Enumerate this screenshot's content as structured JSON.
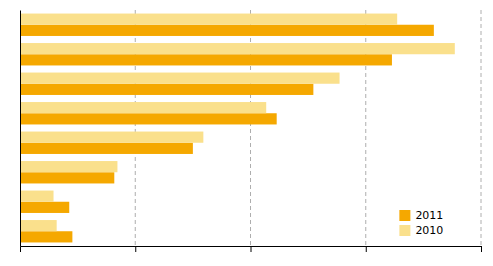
{
  "chart_data": {
    "type": "bar",
    "orientation": "horizontal",
    "categories": [
      null,
      null,
      null,
      null,
      null,
      null,
      null,
      null
    ],
    "series": [
      {
        "name": "2011",
        "color": "#F5A800",
        "values": [
          395,
          355,
          280,
          245,
          165,
          90,
          47,
          50
        ]
      },
      {
        "name": "2010",
        "color": "#FAE08C",
        "values": [
          360,
          415,
          305,
          235,
          175,
          93,
          32,
          35
        ]
      }
    ],
    "xlim": [
      0,
      440
    ],
    "xticks": [
      110,
      220,
      330,
      440
    ],
    "grid": true,
    "legend": "lower right",
    "tick_labels": false
  }
}
